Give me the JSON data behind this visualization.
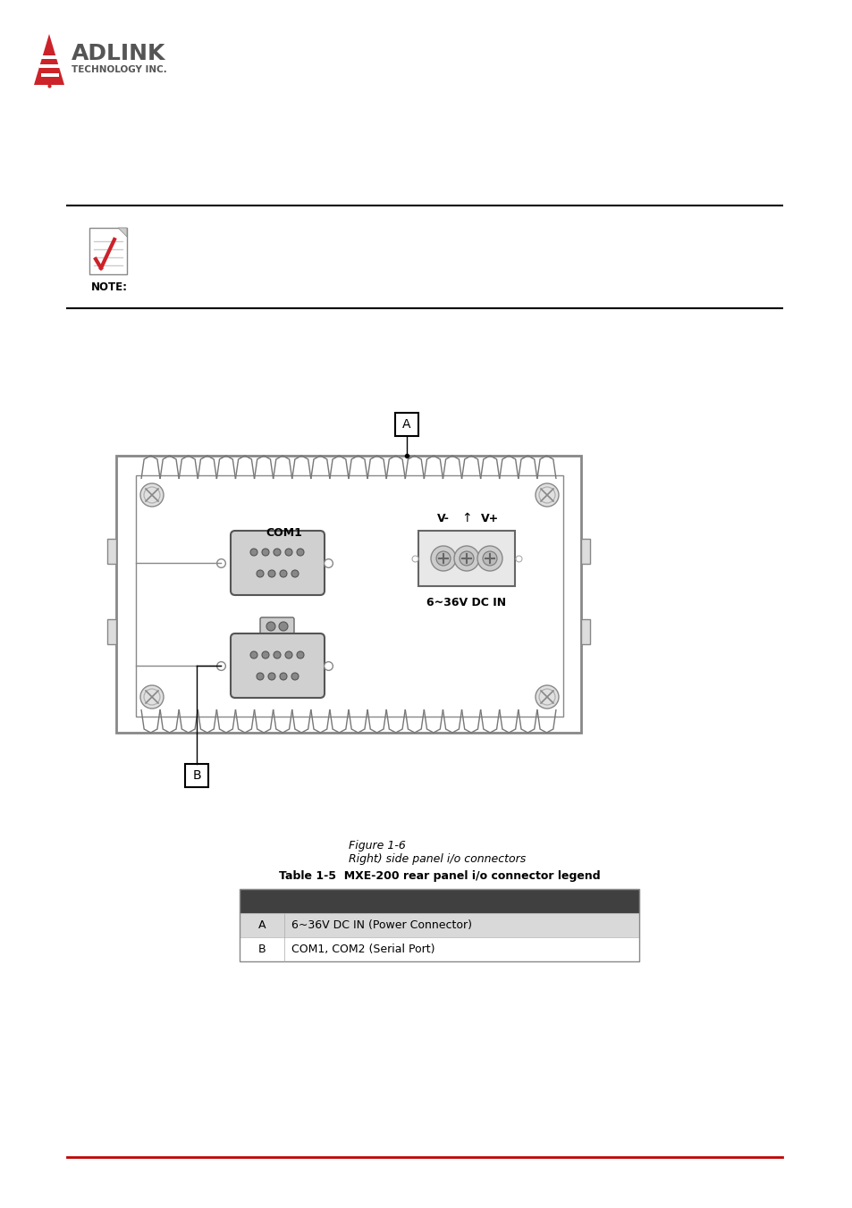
{
  "page_bg": "#ffffff",
  "logo_text_adlink": "ADLINK",
  "logo_text_sub": "TECHNOLOGY INC.",
  "logo_triangle_color": "#cc2229",
  "note_label": "NOTE:",
  "figure_label": "Figure 1-6",
  "figure_caption": "Right) side panel i/o connectors",
  "table_label": "Table 1-5",
  "table_caption": "MXE-200 rear panel i/o connector legend",
  "table_rows": [
    [
      "A",
      "6~36V DC IN (Power Connector)"
    ],
    [
      "B",
      "COM1, COM2 (Serial Port)"
    ]
  ],
  "table_header_bg": "#404040",
  "table_row_bg": [
    "#d9d9d9",
    "#ffffff"
  ],
  "label_A": "A",
  "label_B": "B",
  "connector_text_COM1": "COM1",
  "connector_text_DCIN": "6~36V DC IN",
  "connector_text_VM": "V-",
  "connector_text_VP": "V+",
  "connector_text_arrow": "↑",
  "line_color": "#c00000",
  "border_line_color": "#000000",
  "body_text_color": "#333333",
  "dark_gray": "#555555"
}
